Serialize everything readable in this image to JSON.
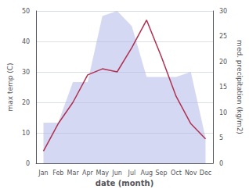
{
  "chart_data": {
    "type": "line",
    "xlabel": "date (month)",
    "ylabel": "max temp (C)",
    "y2label": "med. precipitation (kg/m2)",
    "categories": [
      "Jan",
      "Feb",
      "Mar",
      "Apr",
      "May",
      "Jun",
      "Jul",
      "Aug",
      "Sep",
      "Oct",
      "Nov",
      "Dec"
    ],
    "series": [
      {
        "type": "area",
        "axis": "y2",
        "color": "#b0b8e8",
        "values": [
          8,
          8,
          16,
          16,
          29,
          30,
          27,
          17,
          17,
          17,
          18,
          5
        ]
      },
      {
        "type": "line",
        "color": "#b03050",
        "values": [
          4,
          13,
          20,
          29,
          31,
          30,
          38,
          47,
          35,
          22,
          13,
          8
        ]
      }
    ],
    "ylim": [
      0,
      50
    ],
    "yticks": [
      0,
      10,
      20,
      30,
      40,
      50
    ],
    "y2lim": [
      0,
      30
    ],
    "y2ticks": [
      0,
      5,
      10,
      15,
      20,
      25,
      30
    ],
    "grid": true
  }
}
